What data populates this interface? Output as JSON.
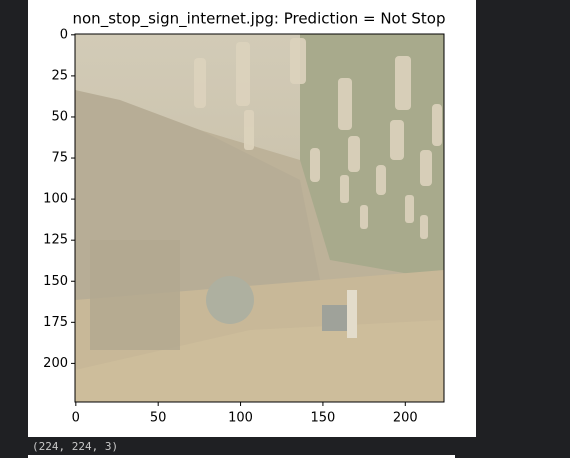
{
  "chart_data": {
    "type": "image",
    "title": "non_stop_sign_internet.jpg: Prediction = Not Stop",
    "xlim": [
      -0.5,
      223.5
    ],
    "ylim": [
      223.5,
      -0.5
    ],
    "xticks": [
      0,
      50,
      100,
      150,
      200
    ],
    "yticks": [
      0,
      25,
      50,
      75,
      100,
      125,
      150,
      175,
      200
    ]
  },
  "output": {
    "text": "(224, 224, 3)"
  }
}
